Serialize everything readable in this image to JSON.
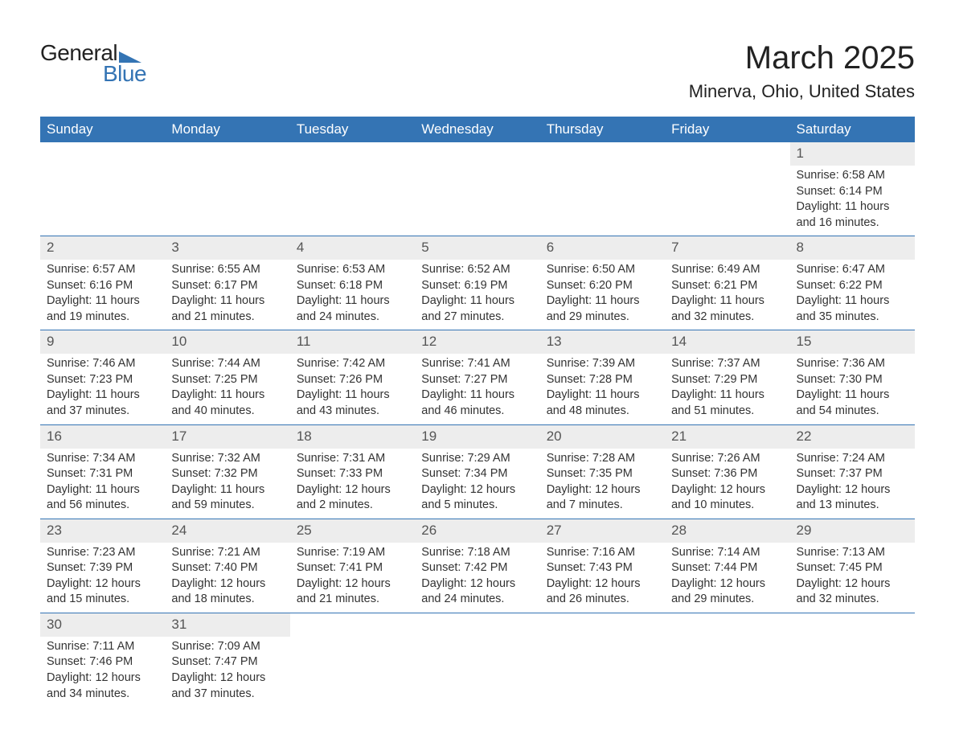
{
  "logo": {
    "text1": "General",
    "text2": "Blue",
    "triangle_color": "#3474b4"
  },
  "title": "March 2025",
  "location": "Minerva, Ohio, United States",
  "colors": {
    "header_bg": "#3474b4",
    "header_text": "#ffffff",
    "daynum_bg": "#ededed",
    "border": "#3474b4",
    "body_text": "#333333",
    "page_bg": "#ffffff"
  },
  "typography": {
    "title_fontsize": 40,
    "location_fontsize": 22,
    "header_fontsize": 17,
    "daynum_fontsize": 17,
    "cell_fontsize": 14.5
  },
  "columns": [
    "Sunday",
    "Monday",
    "Tuesday",
    "Wednesday",
    "Thursday",
    "Friday",
    "Saturday"
  ],
  "weeks": [
    [
      null,
      null,
      null,
      null,
      null,
      null,
      {
        "n": "1",
        "sr": "Sunrise: 6:58 AM",
        "ss": "Sunset: 6:14 PM",
        "dl": "Daylight: 11 hours and 16 minutes."
      }
    ],
    [
      {
        "n": "2",
        "sr": "Sunrise: 6:57 AM",
        "ss": "Sunset: 6:16 PM",
        "dl": "Daylight: 11 hours and 19 minutes."
      },
      {
        "n": "3",
        "sr": "Sunrise: 6:55 AM",
        "ss": "Sunset: 6:17 PM",
        "dl": "Daylight: 11 hours and 21 minutes."
      },
      {
        "n": "4",
        "sr": "Sunrise: 6:53 AM",
        "ss": "Sunset: 6:18 PM",
        "dl": "Daylight: 11 hours and 24 minutes."
      },
      {
        "n": "5",
        "sr": "Sunrise: 6:52 AM",
        "ss": "Sunset: 6:19 PM",
        "dl": "Daylight: 11 hours and 27 minutes."
      },
      {
        "n": "6",
        "sr": "Sunrise: 6:50 AM",
        "ss": "Sunset: 6:20 PM",
        "dl": "Daylight: 11 hours and 29 minutes."
      },
      {
        "n": "7",
        "sr": "Sunrise: 6:49 AM",
        "ss": "Sunset: 6:21 PM",
        "dl": "Daylight: 11 hours and 32 minutes."
      },
      {
        "n": "8",
        "sr": "Sunrise: 6:47 AM",
        "ss": "Sunset: 6:22 PM",
        "dl": "Daylight: 11 hours and 35 minutes."
      }
    ],
    [
      {
        "n": "9",
        "sr": "Sunrise: 7:46 AM",
        "ss": "Sunset: 7:23 PM",
        "dl": "Daylight: 11 hours and 37 minutes."
      },
      {
        "n": "10",
        "sr": "Sunrise: 7:44 AM",
        "ss": "Sunset: 7:25 PM",
        "dl": "Daylight: 11 hours and 40 minutes."
      },
      {
        "n": "11",
        "sr": "Sunrise: 7:42 AM",
        "ss": "Sunset: 7:26 PM",
        "dl": "Daylight: 11 hours and 43 minutes."
      },
      {
        "n": "12",
        "sr": "Sunrise: 7:41 AM",
        "ss": "Sunset: 7:27 PM",
        "dl": "Daylight: 11 hours and 46 minutes."
      },
      {
        "n": "13",
        "sr": "Sunrise: 7:39 AM",
        "ss": "Sunset: 7:28 PM",
        "dl": "Daylight: 11 hours and 48 minutes."
      },
      {
        "n": "14",
        "sr": "Sunrise: 7:37 AM",
        "ss": "Sunset: 7:29 PM",
        "dl": "Daylight: 11 hours and 51 minutes."
      },
      {
        "n": "15",
        "sr": "Sunrise: 7:36 AM",
        "ss": "Sunset: 7:30 PM",
        "dl": "Daylight: 11 hours and 54 minutes."
      }
    ],
    [
      {
        "n": "16",
        "sr": "Sunrise: 7:34 AM",
        "ss": "Sunset: 7:31 PM",
        "dl": "Daylight: 11 hours and 56 minutes."
      },
      {
        "n": "17",
        "sr": "Sunrise: 7:32 AM",
        "ss": "Sunset: 7:32 PM",
        "dl": "Daylight: 11 hours and 59 minutes."
      },
      {
        "n": "18",
        "sr": "Sunrise: 7:31 AM",
        "ss": "Sunset: 7:33 PM",
        "dl": "Daylight: 12 hours and 2 minutes."
      },
      {
        "n": "19",
        "sr": "Sunrise: 7:29 AM",
        "ss": "Sunset: 7:34 PM",
        "dl": "Daylight: 12 hours and 5 minutes."
      },
      {
        "n": "20",
        "sr": "Sunrise: 7:28 AM",
        "ss": "Sunset: 7:35 PM",
        "dl": "Daylight: 12 hours and 7 minutes."
      },
      {
        "n": "21",
        "sr": "Sunrise: 7:26 AM",
        "ss": "Sunset: 7:36 PM",
        "dl": "Daylight: 12 hours and 10 minutes."
      },
      {
        "n": "22",
        "sr": "Sunrise: 7:24 AM",
        "ss": "Sunset: 7:37 PM",
        "dl": "Daylight: 12 hours and 13 minutes."
      }
    ],
    [
      {
        "n": "23",
        "sr": "Sunrise: 7:23 AM",
        "ss": "Sunset: 7:39 PM",
        "dl": "Daylight: 12 hours and 15 minutes."
      },
      {
        "n": "24",
        "sr": "Sunrise: 7:21 AM",
        "ss": "Sunset: 7:40 PM",
        "dl": "Daylight: 12 hours and 18 minutes."
      },
      {
        "n": "25",
        "sr": "Sunrise: 7:19 AM",
        "ss": "Sunset: 7:41 PM",
        "dl": "Daylight: 12 hours and 21 minutes."
      },
      {
        "n": "26",
        "sr": "Sunrise: 7:18 AM",
        "ss": "Sunset: 7:42 PM",
        "dl": "Daylight: 12 hours and 24 minutes."
      },
      {
        "n": "27",
        "sr": "Sunrise: 7:16 AM",
        "ss": "Sunset: 7:43 PM",
        "dl": "Daylight: 12 hours and 26 minutes."
      },
      {
        "n": "28",
        "sr": "Sunrise: 7:14 AM",
        "ss": "Sunset: 7:44 PM",
        "dl": "Daylight: 12 hours and 29 minutes."
      },
      {
        "n": "29",
        "sr": "Sunrise: 7:13 AM",
        "ss": "Sunset: 7:45 PM",
        "dl": "Daylight: 12 hours and 32 minutes."
      }
    ],
    [
      {
        "n": "30",
        "sr": "Sunrise: 7:11 AM",
        "ss": "Sunset: 7:46 PM",
        "dl": "Daylight: 12 hours and 34 minutes."
      },
      {
        "n": "31",
        "sr": "Sunrise: 7:09 AM",
        "ss": "Sunset: 7:47 PM",
        "dl": "Daylight: 12 hours and 37 minutes."
      },
      null,
      null,
      null,
      null,
      null
    ]
  ]
}
